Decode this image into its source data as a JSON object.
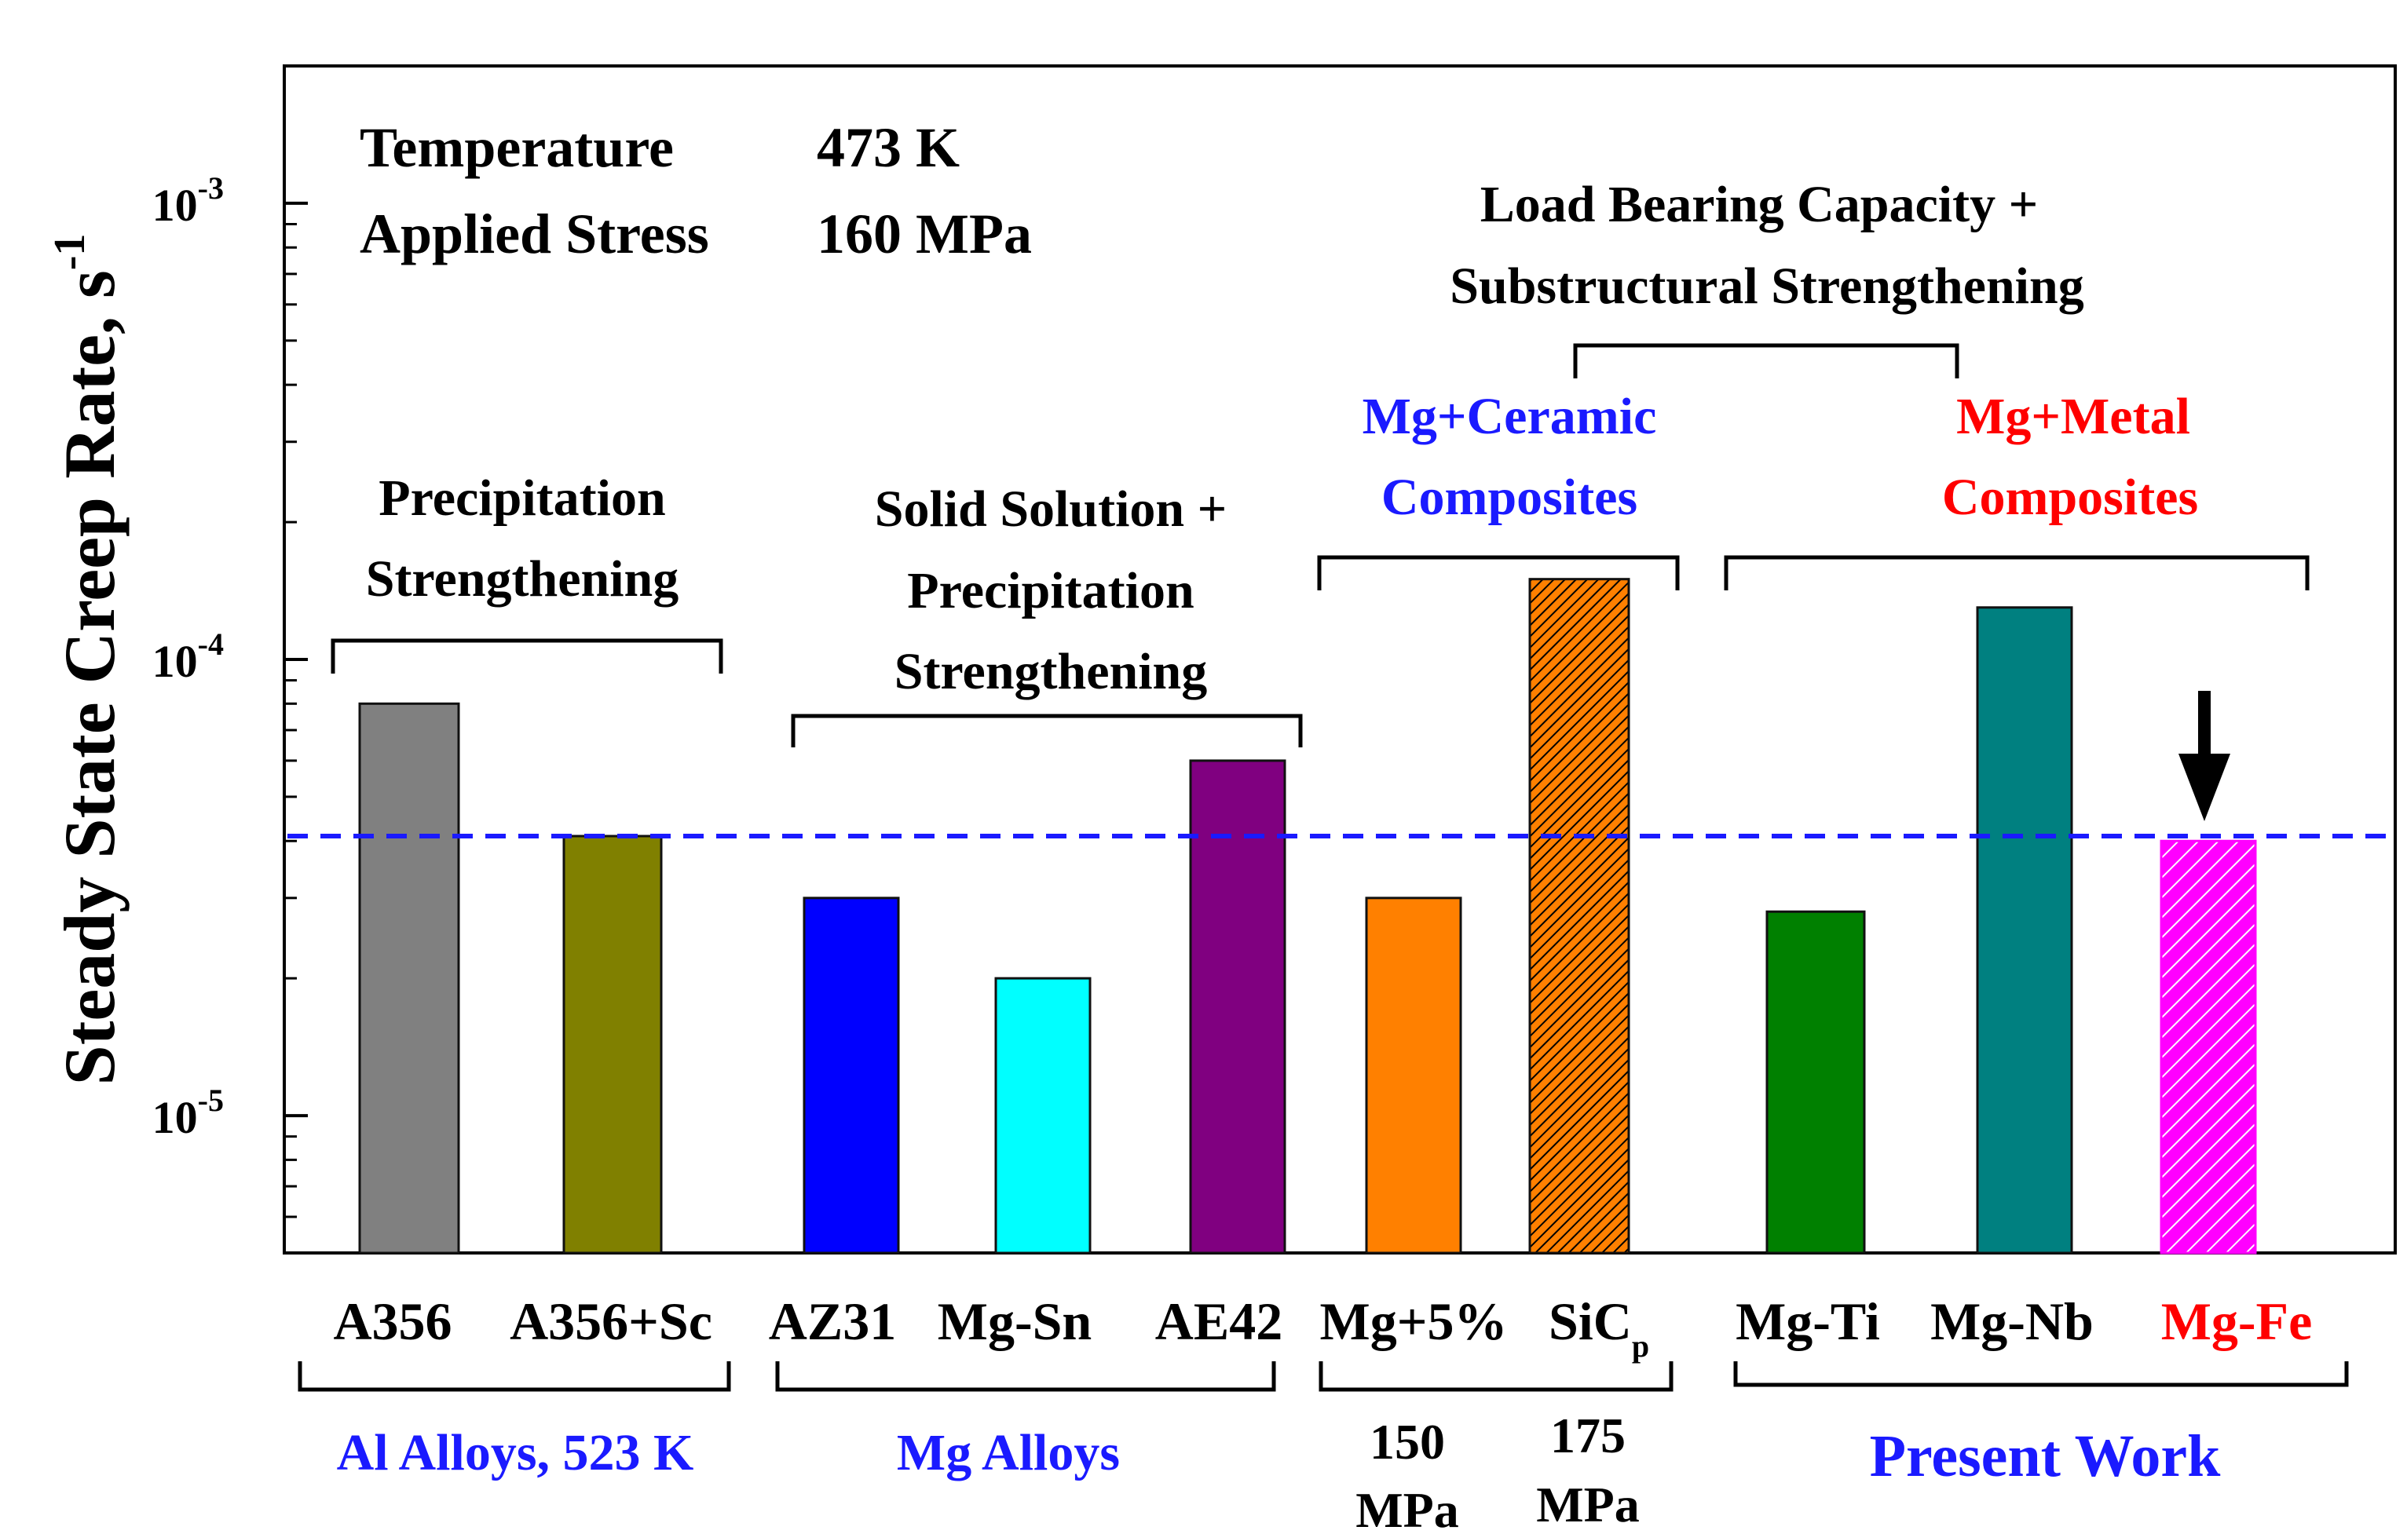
{
  "chart_data": {
    "type": "bar",
    "scale": "log",
    "title": "",
    "ylabel": "Steady State Creep Rate, s",
    "ylabel_superscript": "-1",
    "ylim": [
      5e-06,
      0.002
    ],
    "yticks": [
      {
        "value": 0.001,
        "base": "10",
        "exp": "-3"
      },
      {
        "value": 0.0001,
        "base": "10",
        "exp": "-4"
      },
      {
        "value": 1e-05,
        "base": "10",
        "exp": "-5"
      }
    ],
    "reference_line": {
      "value": 4.1e-05,
      "style": "dashed",
      "color": "#1a1aff"
    },
    "categories": [
      "A356",
      "A356+Sc",
      "AZ31",
      "Mg-Sn",
      "AE42",
      "Mg+5% SiCp (150 MPa)",
      "Mg+5% SiCp (175 MPa)",
      "Mg-Ti",
      "Mg-Nb",
      "Mg-Fe"
    ],
    "bars": [
      {
        "label": "A356",
        "value": 8e-05,
        "color": "#808080",
        "pattern": "none"
      },
      {
        "label": "A356+Sc",
        "value": 4.1e-05,
        "color": "#808000",
        "pattern": "none"
      },
      {
        "label": "AZ31",
        "value": 3e-05,
        "color": "#0000ff",
        "pattern": "none"
      },
      {
        "label": "Mg-Sn",
        "value": 2e-05,
        "color": "#00ffff",
        "pattern": "none"
      },
      {
        "label": "AE42",
        "value": 6e-05,
        "color": "#800080",
        "pattern": "none"
      },
      {
        "label": "Mg+5% SiCp 150 MPa",
        "value": 3e-05,
        "color": "#ff8000",
        "pattern": "none"
      },
      {
        "label": "Mg+5% SiCp 175 MPa",
        "value": 0.00015,
        "color": "#ff8000",
        "pattern": "dense-hatch"
      },
      {
        "label": "Mg-Ti",
        "value": 2.8e-05,
        "color": "#008000",
        "pattern": "none"
      },
      {
        "label": "Mg-Nb",
        "value": 0.00013,
        "color": "#008080",
        "pattern": "none"
      },
      {
        "label": "Mg-Fe",
        "value": 4e-05,
        "color": "#ff00ff",
        "pattern": "hatch"
      }
    ],
    "tick_labels": [
      {
        "text": "A356",
        "sub": "",
        "color": "#000000"
      },
      {
        "text": "A356+Sc",
        "sub": "",
        "color": "#000000"
      },
      {
        "text": "AZ31",
        "sub": "",
        "color": "#000000"
      },
      {
        "text": "Mg-Sn",
        "sub": "",
        "color": "#000000"
      },
      {
        "text": "AE42",
        "sub": "",
        "color": "#000000"
      },
      {
        "text": "Mg+5%",
        "sub": "",
        "color": "#000000"
      },
      {
        "text": "SiC",
        "sub": "p",
        "color": "#000000"
      },
      {
        "text": "Mg-Ti",
        "sub": "",
        "color": "#000000"
      },
      {
        "text": "Mg-Nb",
        "sub": "",
        "color": "#000000"
      },
      {
        "text": "Mg-Fe",
        "sub": "",
        "color": "#ff0000"
      }
    ],
    "conditions": {
      "temperature_label": "Temperature",
      "temperature_value": "473 K",
      "stress_label": "Applied Stress",
      "stress_value": "160 MPa"
    },
    "annotations": {
      "precipitation": [
        "Precipitation",
        "Strengthening"
      ],
      "solid_solution": [
        "Solid Solution +",
        "Precipitation",
        "Strengthening"
      ],
      "load_bearing": [
        "Load Bearing Capacity +",
        "Substructural Strengthening"
      ],
      "ceramic": [
        "Mg+Ceramic",
        "Composites"
      ],
      "metal": [
        "Mg+Metal",
        "Composites"
      ]
    },
    "groups": {
      "al_alloys": "Al Alloys, 523 K",
      "mg_alloys": "Mg Alloys",
      "present_work": "Present Work"
    },
    "stress_labels": {
      "s150": [
        "150",
        "MPa"
      ],
      "s175": [
        "175",
        "MPa"
      ]
    },
    "colors": {
      "blue_text": "#1a1aff",
      "red_text": "#ff0000"
    }
  }
}
